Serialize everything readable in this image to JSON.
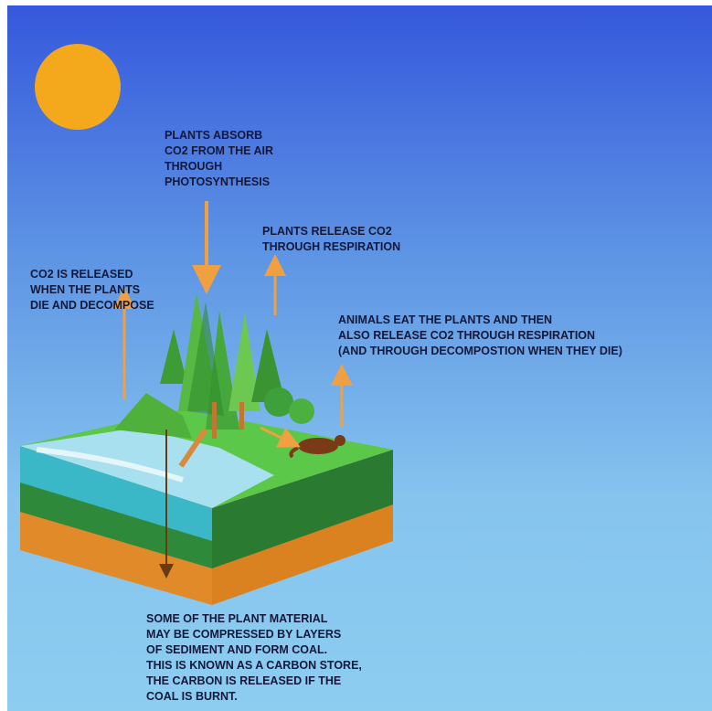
{
  "labels": {
    "photosynthesis": [
      "PLANTS ABSORB",
      "CO2 FROM THE AIR",
      "THROUGH",
      "PHOTOSYNTHESIS"
    ],
    "respiration": [
      "PLANTS RELEASE CO2",
      "THROUGH RESPIRATION"
    ],
    "decompose": [
      "CO2 IS RELEASED",
      "WHEN THE PLANTS",
      "DIE AND DECOMPOSE"
    ],
    "animals": [
      "ANIMALS EAT THE PLANTS AND THEN",
      "ALSO RELEASE CO2 THROUGH RESPIRATION",
      "(AND THROUGH DECOMPOSTION WHEN THEY DIE)"
    ],
    "coal": [
      "SOME OF THE PLANT  MATERIAL",
      "MAY BE COMPRESSED BY LAYERS",
      "OF SEDIMENT AND FORM COAL.",
      "THIS IS KNOWN AS A CARBON STORE,",
      "THE CARBON IS RELEASED IF THE",
      "COAL IS BURNT."
    ]
  }
}
